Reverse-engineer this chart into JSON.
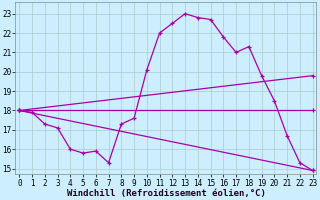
{
  "xlabel": "Windchill (Refroidissement éolien,°C)",
  "ylabel": "",
  "bg_color": "#cceeff",
  "grid_color": "#aacccc",
  "line_color": "#aa00aa",
  "x_ticks": [
    0,
    1,
    2,
    3,
    4,
    5,
    6,
    7,
    8,
    9,
    10,
    11,
    12,
    13,
    14,
    15,
    16,
    17,
    18,
    19,
    20,
    21,
    22,
    23
  ],
  "y_ticks": [
    15,
    16,
    17,
    18,
    19,
    20,
    21,
    22,
    23
  ],
  "xlim": [
    -0.3,
    23.3
  ],
  "ylim": [
    14.7,
    23.6
  ],
  "line1_x": [
    0,
    1,
    2,
    3,
    4,
    5,
    6,
    7,
    8,
    9,
    10,
    11,
    12,
    13,
    14,
    15,
    16,
    17,
    18,
    19,
    20,
    21,
    22,
    23
  ],
  "line1_y": [
    18.0,
    17.9,
    17.3,
    17.1,
    16.0,
    15.8,
    15.9,
    15.3,
    17.3,
    17.6,
    20.1,
    22.0,
    22.5,
    23.0,
    22.8,
    22.7,
    21.8,
    21.0,
    21.3,
    19.8,
    18.5,
    16.7,
    15.3,
    14.9
  ],
  "line2_x": [
    0,
    23
  ],
  "line2_y": [
    18.0,
    19.8
  ],
  "line3_x": [
    0,
    23
  ],
  "line3_y": [
    18.0,
    18.0
  ],
  "line4_x": [
    0,
    23
  ],
  "line4_y": [
    18.0,
    14.9
  ],
  "tick_fontsize": 5.5,
  "xlabel_fontsize": 6.5
}
